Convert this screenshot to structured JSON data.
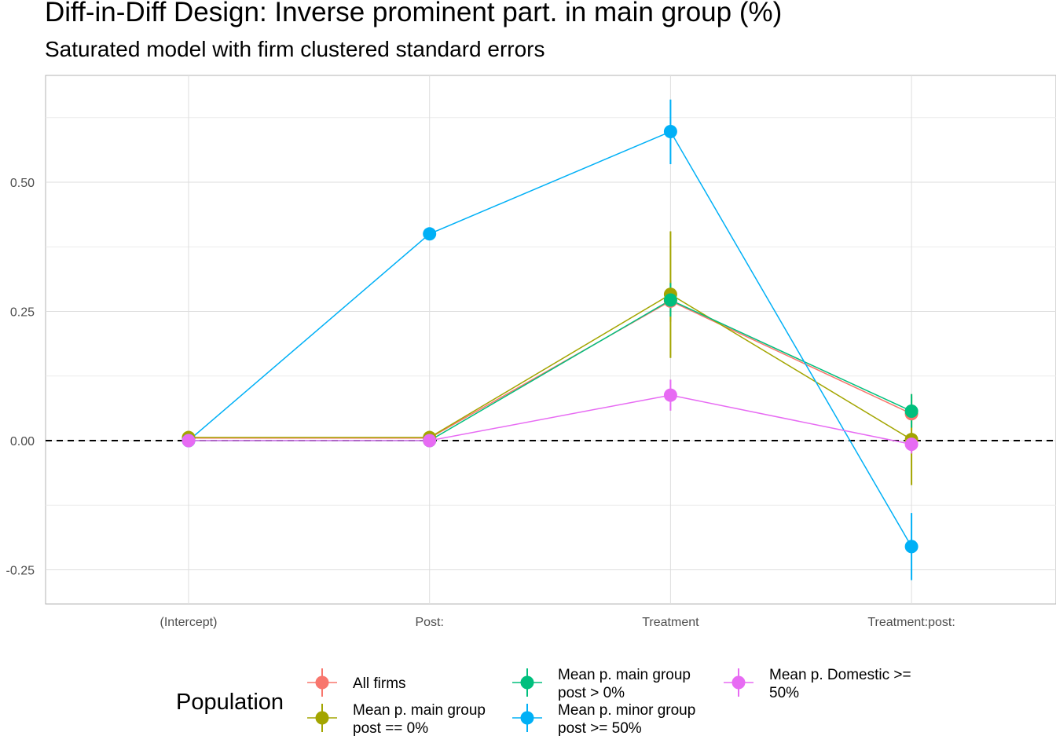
{
  "chart_data": {
    "type": "line",
    "title": "Diff-in-Diff Design: Inverse prominent part. in main group (%)",
    "subtitle": "Saturated model with firm clustered standard errors",
    "xlabel": "",
    "ylabel": "",
    "categories": [
      "(Intercept)",
      "Post:",
      "Treatment",
      "Treatment:post:"
    ],
    "ylim": [
      -0.31,
      0.71
    ],
    "yticks": [
      -0.25,
      0.0,
      0.25,
      0.5
    ],
    "ytick_labels": [
      "-0.25",
      "0.00",
      "0.25",
      "0.50"
    ],
    "grid": true,
    "reference_line": 0.0,
    "legend": {
      "title": "Population",
      "position": "bottom"
    },
    "series": [
      {
        "name": "All firms",
        "color": "#F8766D",
        "values": [
          0.005,
          0.005,
          0.27,
          0.052
        ],
        "lower": [
          0.005,
          0.005,
          0.23,
          0.02
        ],
        "upper": [
          0.005,
          0.005,
          0.31,
          0.085
        ]
      },
      {
        "name": "Mean p. main group post == 0%",
        "color": "#A3A500",
        "values": [
          0.006,
          0.006,
          0.283,
          0.002
        ],
        "lower": [
          0.006,
          0.006,
          0.16,
          -0.086
        ],
        "upper": [
          0.006,
          0.006,
          0.405,
          0.09
        ]
      },
      {
        "name": "Mean p. main group post > 0%",
        "color": "#00BF7D",
        "values": [
          0.0,
          0.0,
          0.272,
          0.057
        ],
        "lower": [
          0.0,
          0.0,
          0.24,
          0.025
        ],
        "upper": [
          0.0,
          0.0,
          0.305,
          0.09
        ]
      },
      {
        "name": "Mean p. minor group post >= 50%",
        "color": "#00B0F6",
        "values": [
          0.0,
          0.4,
          0.598,
          -0.205
        ],
        "lower": [
          0.0,
          0.4,
          0.535,
          -0.27
        ],
        "upper": [
          0.0,
          0.4,
          0.66,
          -0.14
        ]
      },
      {
        "name": "Mean p. Domestic >= 50%",
        "color": "#E76BF3",
        "values": [
          0.0,
          0.0,
          0.088,
          -0.007
        ],
        "lower": [
          0.0,
          0.0,
          0.058,
          -0.025
        ],
        "upper": [
          0.0,
          0.0,
          0.118,
          0.01
        ]
      }
    ],
    "legend_items": [
      {
        "series": 0,
        "lines": [
          "All firms"
        ]
      },
      {
        "series": 1,
        "lines": [
          "Mean p. main group",
          "post == 0%"
        ]
      },
      {
        "series": 2,
        "lines": [
          "Mean p. main group",
          "post > 0%"
        ]
      },
      {
        "series": 3,
        "lines": [
          "Mean p. minor group",
          "post >= 50%"
        ]
      },
      {
        "series": 4,
        "lines": [
          "Mean p. Domestic >=",
          "50%"
        ]
      }
    ]
  }
}
